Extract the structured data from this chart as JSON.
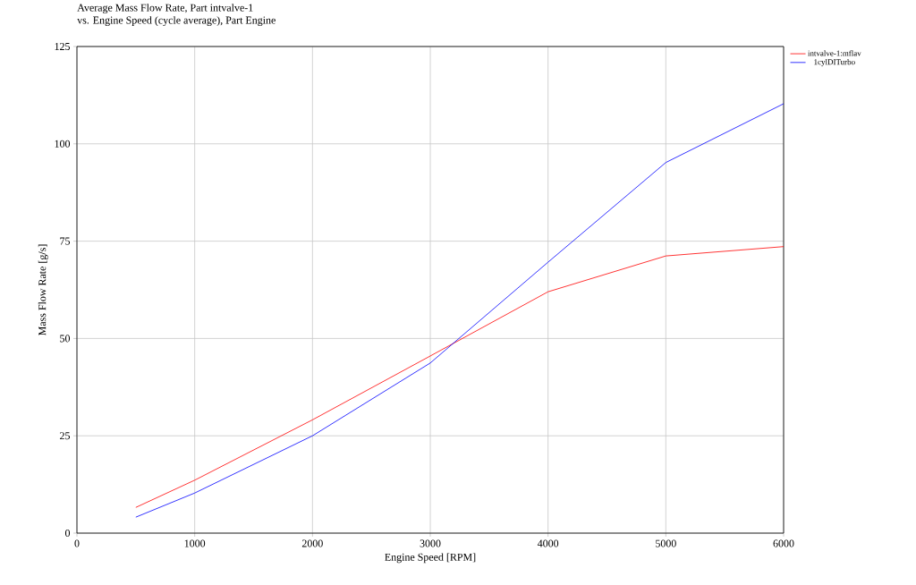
{
  "chart_data": {
    "type": "line",
    "title": "Average Mass Flow Rate, Part intvalve-1",
    "subtitle": "vs. Engine Speed (cycle average), Part Engine",
    "xlabel": "Engine Speed [RPM]",
    "ylabel": "Mass Flow Rate [g/s]",
    "x": [
      500,
      1000,
      2000,
      3000,
      4000,
      5000,
      6000
    ],
    "series": [
      {
        "name": "intvalve-1:mflav",
        "color": "#ff0000",
        "values": [
          6.6,
          13.6,
          29.1,
          45.5,
          62.0,
          71.2,
          73.6
        ]
      },
      {
        "name": "1cylDITurbo",
        "color": "#0000ff",
        "values": [
          4.1,
          10.3,
          25.0,
          43.7,
          69.6,
          95.2,
          110.3
        ]
      }
    ],
    "xlim": [
      0,
      6000
    ],
    "ylim": [
      0,
      125
    ],
    "xticks": [
      0,
      1000,
      2000,
      3000,
      4000,
      5000,
      6000
    ],
    "yticks": [
      0,
      25,
      50,
      75,
      100,
      125
    ],
    "grid": true,
    "legend": "top right",
    "marker": "none",
    "line_style": "solid"
  }
}
